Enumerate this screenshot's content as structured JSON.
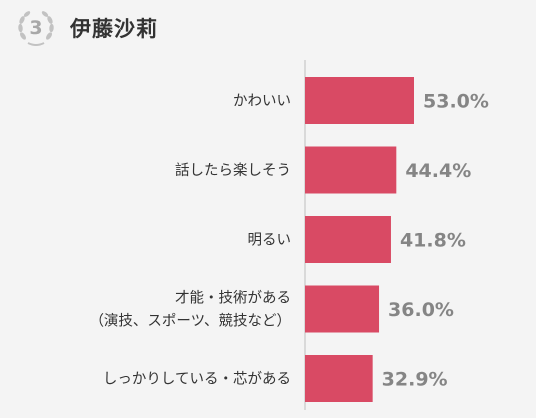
{
  "header": {
    "rank": "3",
    "title": "伊藤沙莉",
    "rank_icon": "laurel-wreath-icon"
  },
  "colors": {
    "bar": "#d94a64",
    "axis": "#d0d0d0",
    "value_text": "#858585",
    "badge": "#bdbdbd"
  },
  "chart_data": {
    "type": "bar",
    "orientation": "horizontal",
    "unit": "%",
    "categories": [
      [
        "かわいい"
      ],
      [
        "話したら楽しそう"
      ],
      [
        "明るい"
      ],
      [
        "才能・技術がある",
        "（演技、スポーツ、競技など）"
      ],
      [
        "しっかりしている・芯がある"
      ]
    ],
    "values": [
      53.0,
      44.4,
      41.8,
      36.0,
      32.9
    ],
    "value_labels": [
      "53.0%",
      "44.4%",
      "41.8%",
      "36.0%",
      "32.9%"
    ],
    "xlim": [
      0,
      53.0
    ],
    "grid": false,
    "legend": "none"
  }
}
